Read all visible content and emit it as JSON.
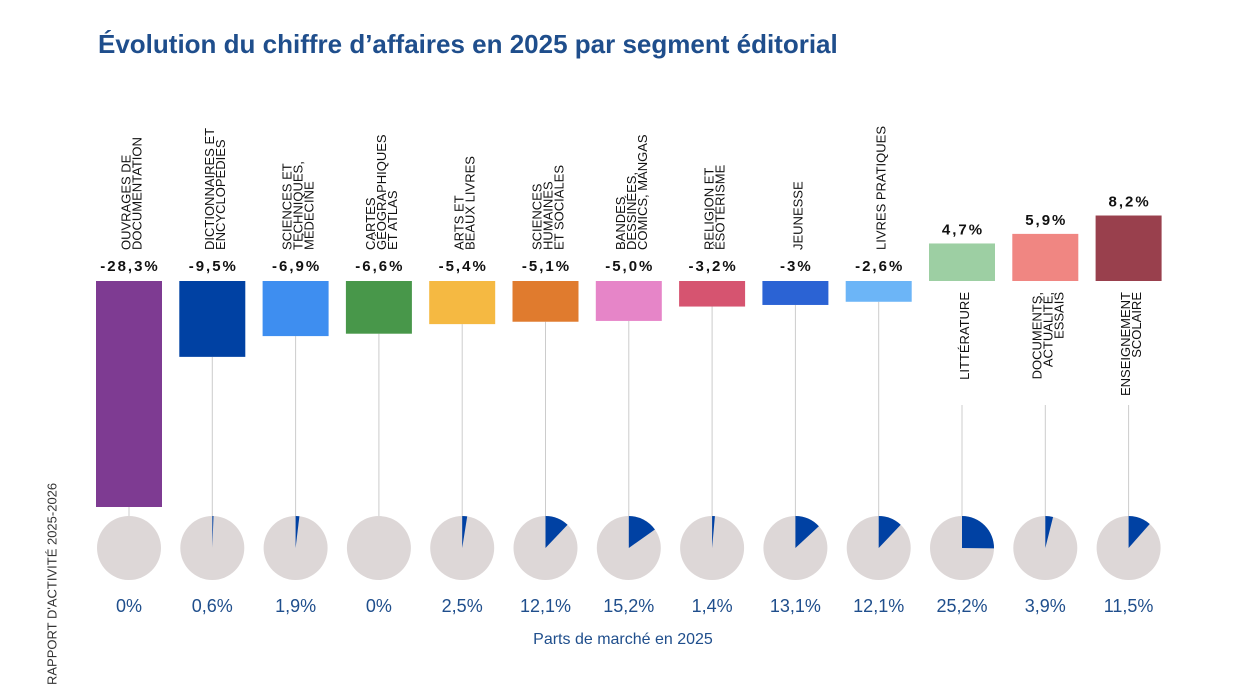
{
  "chart_data": {
    "type": "bar",
    "title": "Évolution du chiffre d’affaires en 2025 par segment éditorial",
    "side_text": "RAPPORT D'ACTIVITÉ 2025-2026",
    "x_label": "Parts de marché en 2025",
    "categories": [
      "OUVRAGES DE\nDOCUMENTATION",
      "DICTIONNAIRES ET\nENCYCLOPÉDIES",
      "SCIENCES ET\nTECHNIQUES,\nMÉDECINE",
      "CARTES\nGÉOGRAPHIQUES\nET ATLAS",
      "ARTS ET\nBEAUX LIVRES",
      "SCIENCES\nHUMAINES\nET SOCIALES",
      "BANDES\nDESSINÉES,\nCOMICS, MANGAS",
      "RELIGION ET\nÉSOTÉRISME",
      "JEUNESSE",
      "LIVRES PRATIQUES",
      "LITTÉRATURE",
      "DOCUMENTS,\nACTUALITÉ,\nESSAIS",
      "ENSEIGNEMENT\nSCOLAIRE"
    ],
    "values": [
      -28.3,
      -9.5,
      -6.9,
      -6.6,
      -5.4,
      -5.1,
      -5.0,
      -3.2,
      -3,
      -2.6,
      4.7,
      5.9,
      8.2
    ],
    "value_labels": [
      "-28,3%",
      "-9,5%",
      "-6,9%",
      "-6,6%",
      "-5,4%",
      "-5,1%",
      "-5,0%",
      "-3,2%",
      "-3%",
      "-2,6%",
      "4,7%",
      "5,9%",
      "8,2%"
    ],
    "colors": [
      "#7e3b92",
      "#0041a3",
      "#3e8ef0",
      "#48974a",
      "#f5b942",
      "#e07b2e",
      "#e685c8",
      "#d65470",
      "#2b63d4",
      "#6cb5f7",
      "#9dcfa3",
      "#f08682",
      "#99404d"
    ],
    "shares": [
      0,
      0.6,
      1.9,
      0,
      2.5,
      12.1,
      15.2,
      1.4,
      13.1,
      12.1,
      25.2,
      3.9,
      11.5
    ],
    "share_labels": [
      "0%",
      "0,6%",
      "1,9%",
      "0%",
      "2,5%",
      "12,1%",
      "15,2%",
      "1,4%",
      "13,1%",
      "12,1%",
      "25,2%",
      "3,9%",
      "11,5%"
    ],
    "share_color": "#0041a3",
    "pie_color": "#ddd7d7"
  }
}
